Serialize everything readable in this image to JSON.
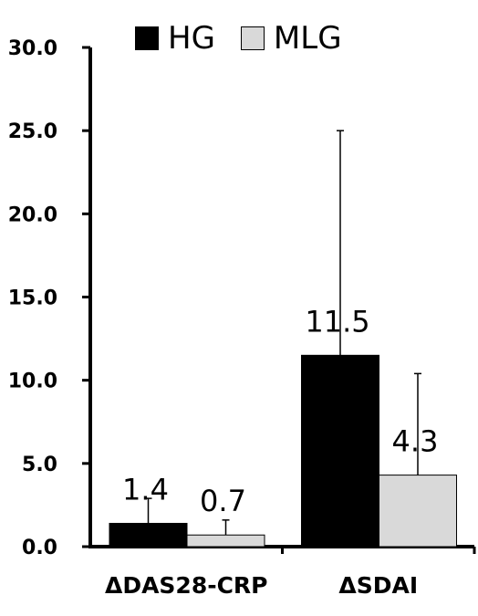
{
  "chart_data": {
    "type": "bar",
    "categories": [
      "ΔDAS28-CRP",
      "ΔSDAI"
    ],
    "series": [
      {
        "name": "HG",
        "values": [
          1.4,
          11.5
        ],
        "error": [
          1.5,
          13.5
        ],
        "color": "#000000"
      },
      {
        "name": "MLG",
        "values": [
          0.7,
          4.3
        ],
        "error": [
          0.9,
          6.1
        ],
        "color": "#d9d9d9"
      }
    ],
    "data_labels": [
      [
        "1.4",
        "11.5"
      ],
      [
        "0.7",
        "4.3"
      ]
    ],
    "yticks": [
      "0.0",
      "5.0",
      "10.0",
      "15.0",
      "20.0",
      "25.0",
      "30.0"
    ],
    "ylim": [
      0,
      30
    ],
    "legend_position": "top",
    "grid": false,
    "title": "",
    "xlabel": "",
    "ylabel": ""
  }
}
